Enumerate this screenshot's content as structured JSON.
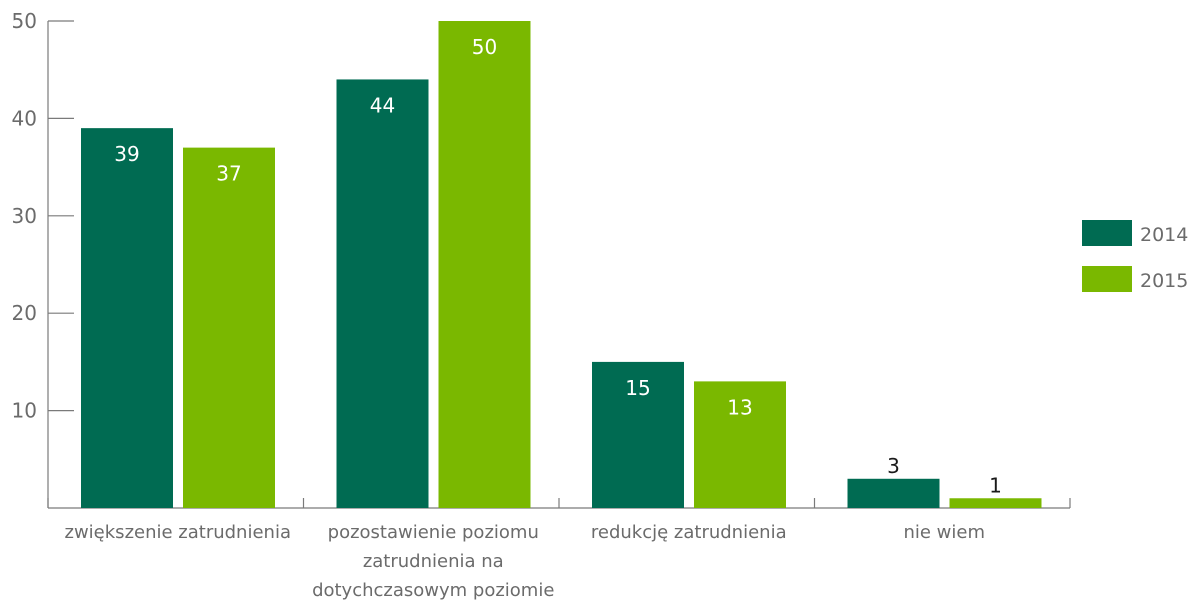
{
  "chart_data": {
    "type": "bar",
    "categories": [
      [
        "zwiększenie zatrudnienia"
      ],
      [
        "pozostawienie poziomu",
        "zatrudnienia na",
        "dotychczasowym poziomie"
      ],
      [
        "redukcję zatrudnienia"
      ],
      [
        "nie wiem"
      ]
    ],
    "series": [
      {
        "name": "2014",
        "color": "#006b52",
        "values": [
          39,
          44,
          15,
          3
        ]
      },
      {
        "name": "2015",
        "color": "#7ab800",
        "values": [
          37,
          50,
          13,
          1
        ]
      }
    ],
    "yticks": [
      10,
      20,
      30,
      40,
      50
    ],
    "ylim": [
      0,
      50
    ],
    "legend_position": "right",
    "grid": false,
    "data_labels": true
  }
}
